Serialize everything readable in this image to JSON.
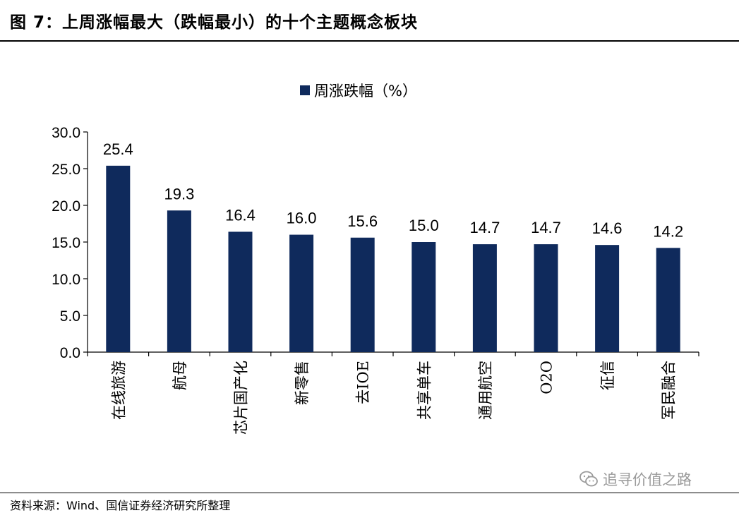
{
  "figure": {
    "title": "图 7：上周涨幅最大（跌幅最小）的十个主题概念板块",
    "source": "资料来源：Wind、国信证券经济研究所整理",
    "watermark": "追寻价值之路"
  },
  "chart_data": {
    "type": "bar",
    "categories": [
      "在线旅游",
      "航母",
      "芯片国产化",
      "新零售",
      "去IOE",
      "共享单车",
      "通用航空",
      "O2O",
      "征信",
      "军民融合"
    ],
    "series": [
      {
        "name": "周涨跌幅（%）",
        "values": [
          25.4,
          19.3,
          16.4,
          16.0,
          15.6,
          15.0,
          14.7,
          14.7,
          14.6,
          14.2
        ]
      }
    ],
    "ylim": [
      0,
      30
    ],
    "yticks": [
      "0.0",
      "5.0",
      "10.0",
      "15.0",
      "20.0",
      "25.0",
      "30.0"
    ],
    "value_labels": [
      "25.4",
      "19.3",
      "16.4",
      "16.0",
      "15.6",
      "15.0",
      "14.7",
      "14.7",
      "14.6",
      "14.2"
    ],
    "grid": false,
    "legend_position": "top-center",
    "bar_color": "#0f2a5c"
  }
}
